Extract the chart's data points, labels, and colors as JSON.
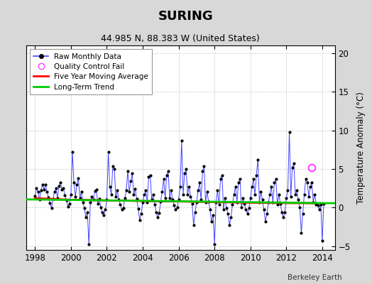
{
  "title": "SURING",
  "subtitle": "44.985 N, 88.383 W (United States)",
  "ylabel": "Temperature Anomaly (°C)",
  "credit": "Berkeley Earth",
  "xlim": [
    1997.5,
    2014.7
  ],
  "ylim": [
    -5.5,
    21.0
  ],
  "yticks": [
    -5,
    0,
    5,
    10,
    15,
    20
  ],
  "xticks": [
    1998,
    2000,
    2002,
    2004,
    2006,
    2008,
    2010,
    2012,
    2014
  ],
  "bg_color": "#d8d8d8",
  "plot_bg_color": "#ffffff",
  "raw_line_color": "#4444ff",
  "raw_marker_color": "#000000",
  "moving_avg_color": "#ff0000",
  "trend_color": "#00cc00",
  "qc_fail_color": "#ff44ff",
  "raw_data": [
    [
      1998.0,
      1.5
    ],
    [
      1998.083,
      2.5
    ],
    [
      1998.167,
      2.0
    ],
    [
      1998.25,
      1.0
    ],
    [
      1998.333,
      2.2
    ],
    [
      1998.417,
      3.0
    ],
    [
      1998.5,
      2.3
    ],
    [
      1998.583,
      3.0
    ],
    [
      1998.667,
      2.0
    ],
    [
      1998.75,
      1.3
    ],
    [
      1998.833,
      0.6
    ],
    [
      1998.917,
      -0.1
    ],
    [
      1999.0,
      1.1
    ],
    [
      1999.083,
      2.0
    ],
    [
      1999.167,
      2.5
    ],
    [
      1999.25,
      1.2
    ],
    [
      1999.333,
      2.8
    ],
    [
      1999.417,
      3.2
    ],
    [
      1999.5,
      2.3
    ],
    [
      1999.583,
      2.5
    ],
    [
      1999.667,
      1.6
    ],
    [
      1999.75,
      0.9
    ],
    [
      1999.833,
      0.1
    ],
    [
      1999.917,
      0.5
    ],
    [
      2000.0,
      1.7
    ],
    [
      2000.083,
      7.2
    ],
    [
      2000.167,
      3.2
    ],
    [
      2000.25,
      1.4
    ],
    [
      2000.333,
      3.0
    ],
    [
      2000.417,
      3.8
    ],
    [
      2000.5,
      1.2
    ],
    [
      2000.583,
      2.0
    ],
    [
      2000.667,
      0.7
    ],
    [
      2000.75,
      -0.1
    ],
    [
      2000.833,
      -1.3
    ],
    [
      2000.917,
      -0.6
    ],
    [
      2001.0,
      -4.8
    ],
    [
      2001.083,
      0.7
    ],
    [
      2001.167,
      1.4
    ],
    [
      2001.25,
      1.0
    ],
    [
      2001.333,
      2.1
    ],
    [
      2001.417,
      2.3
    ],
    [
      2001.5,
      0.5
    ],
    [
      2001.583,
      1.1
    ],
    [
      2001.667,
      0.0
    ],
    [
      2001.75,
      -0.6
    ],
    [
      2001.833,
      -1.0
    ],
    [
      2001.917,
      -0.3
    ],
    [
      2002.0,
      1.0
    ],
    [
      2002.083,
      7.2
    ],
    [
      2002.167,
      2.7
    ],
    [
      2002.25,
      1.7
    ],
    [
      2002.333,
      5.4
    ],
    [
      2002.417,
      5.0
    ],
    [
      2002.5,
      1.4
    ],
    [
      2002.583,
      2.2
    ],
    [
      2002.667,
      1.0
    ],
    [
      2002.75,
      0.4
    ],
    [
      2002.833,
      -0.3
    ],
    [
      2002.917,
      -0.1
    ],
    [
      2003.0,
      1.2
    ],
    [
      2003.083,
      2.2
    ],
    [
      2003.167,
      4.7
    ],
    [
      2003.25,
      2.0
    ],
    [
      2003.333,
      3.4
    ],
    [
      2003.417,
      4.4
    ],
    [
      2003.5,
      1.7
    ],
    [
      2003.583,
      2.4
    ],
    [
      2003.667,
      1.1
    ],
    [
      2003.75,
      -0.2
    ],
    [
      2003.833,
      -1.6
    ],
    [
      2003.917,
      -0.8
    ],
    [
      2004.0,
      0.7
    ],
    [
      2004.083,
      1.7
    ],
    [
      2004.167,
      2.2
    ],
    [
      2004.25,
      0.7
    ],
    [
      2004.333,
      4.0
    ],
    [
      2004.417,
      4.2
    ],
    [
      2004.5,
      1.0
    ],
    [
      2004.583,
      1.7
    ],
    [
      2004.667,
      0.4
    ],
    [
      2004.75,
      -0.6
    ],
    [
      2004.833,
      -1.3
    ],
    [
      2004.917,
      -0.7
    ],
    [
      2005.0,
      0.8
    ],
    [
      2005.083,
      2.0
    ],
    [
      2005.167,
      3.7
    ],
    [
      2005.25,
      1.2
    ],
    [
      2005.333,
      4.2
    ],
    [
      2005.417,
      4.7
    ],
    [
      2005.5,
      1.2
    ],
    [
      2005.583,
      2.2
    ],
    [
      2005.667,
      1.0
    ],
    [
      2005.75,
      0.3
    ],
    [
      2005.833,
      -0.3
    ],
    [
      2005.917,
      0.0
    ],
    [
      2006.0,
      1.0
    ],
    [
      2006.083,
      2.7
    ],
    [
      2006.167,
      8.7
    ],
    [
      2006.25,
      1.7
    ],
    [
      2006.333,
      4.4
    ],
    [
      2006.417,
      5.0
    ],
    [
      2006.5,
      1.7
    ],
    [
      2006.583,
      2.7
    ],
    [
      2006.667,
      1.4
    ],
    [
      2006.75,
      0.5
    ],
    [
      2006.833,
      -2.3
    ],
    [
      2006.917,
      -0.6
    ],
    [
      2007.0,
      0.7
    ],
    [
      2007.083,
      2.2
    ],
    [
      2007.167,
      3.2
    ],
    [
      2007.25,
      1.0
    ],
    [
      2007.333,
      4.7
    ],
    [
      2007.417,
      5.4
    ],
    [
      2007.5,
      0.7
    ],
    [
      2007.583,
      2.0
    ],
    [
      2007.667,
      0.8
    ],
    [
      2007.75,
      -0.3
    ],
    [
      2007.833,
      -1.8
    ],
    [
      2007.917,
      -1.0
    ],
    [
      2008.0,
      -4.8
    ],
    [
      2008.083,
      0.7
    ],
    [
      2008.167,
      2.2
    ],
    [
      2008.25,
      0.4
    ],
    [
      2008.333,
      3.7
    ],
    [
      2008.417,
      4.2
    ],
    [
      2008.5,
      -0.3
    ],
    [
      2008.583,
      1.2
    ],
    [
      2008.667,
      -0.1
    ],
    [
      2008.75,
      -0.8
    ],
    [
      2008.833,
      -2.3
    ],
    [
      2008.917,
      -1.3
    ],
    [
      2009.0,
      0.4
    ],
    [
      2009.083,
      1.7
    ],
    [
      2009.167,
      2.7
    ],
    [
      2009.25,
      0.7
    ],
    [
      2009.333,
      3.2
    ],
    [
      2009.417,
      3.7
    ],
    [
      2009.5,
      0.0
    ],
    [
      2009.583,
      1.2
    ],
    [
      2009.667,
      0.5
    ],
    [
      2009.75,
      -0.3
    ],
    [
      2009.833,
      -0.8
    ],
    [
      2009.917,
      -0.1
    ],
    [
      2010.0,
      1.2
    ],
    [
      2010.083,
      2.7
    ],
    [
      2010.167,
      3.7
    ],
    [
      2010.25,
      1.7
    ],
    [
      2010.333,
      4.2
    ],
    [
      2010.417,
      6.2
    ],
    [
      2010.5,
      0.7
    ],
    [
      2010.583,
      2.0
    ],
    [
      2010.667,
      1.0
    ],
    [
      2010.75,
      -0.3
    ],
    [
      2010.833,
      -1.8
    ],
    [
      2010.917,
      -0.8
    ],
    [
      2011.0,
      0.7
    ],
    [
      2011.083,
      1.7
    ],
    [
      2011.167,
      2.7
    ],
    [
      2011.25,
      0.7
    ],
    [
      2011.333,
      3.2
    ],
    [
      2011.417,
      3.7
    ],
    [
      2011.5,
      0.4
    ],
    [
      2011.583,
      1.7
    ],
    [
      2011.667,
      0.5
    ],
    [
      2011.75,
      -0.6
    ],
    [
      2011.833,
      -1.3
    ],
    [
      2011.917,
      -0.6
    ],
    [
      2012.0,
      1.2
    ],
    [
      2012.083,
      2.2
    ],
    [
      2012.167,
      9.8
    ],
    [
      2012.25,
      1.4
    ],
    [
      2012.333,
      5.2
    ],
    [
      2012.417,
      5.7
    ],
    [
      2012.5,
      1.7
    ],
    [
      2012.583,
      2.2
    ],
    [
      2012.667,
      1.0
    ],
    [
      2012.75,
      0.0
    ],
    [
      2012.833,
      -3.3
    ],
    [
      2012.917,
      -0.8
    ],
    [
      2013.0,
      1.7
    ],
    [
      2013.083,
      3.7
    ],
    [
      2013.167,
      3.2
    ],
    [
      2013.25,
      1.4
    ],
    [
      2013.333,
      2.7
    ],
    [
      2013.417,
      3.2
    ],
    [
      2013.5,
      0.7
    ],
    [
      2013.583,
      1.7
    ],
    [
      2013.667,
      0.4
    ],
    [
      2013.75,
      0.3
    ],
    [
      2013.833,
      -0.3
    ],
    [
      2013.917,
      0.4
    ],
    [
      2014.0,
      -4.3
    ],
    [
      2014.083,
      0.5
    ]
  ],
  "qc_fail_points": [
    [
      2013.417,
      5.2
    ]
  ],
  "moving_avg_x": [
    1998.0,
    1998.5,
    1999.0,
    1999.5,
    2000.0,
    2000.5,
    2001.0,
    2001.5,
    2002.0,
    2002.5,
    2003.0,
    2003.5,
    2004.0,
    2004.5,
    2005.0,
    2005.5,
    2006.0,
    2006.5,
    2007.0,
    2007.5,
    2008.0,
    2008.5,
    2009.0,
    2009.5,
    2010.0,
    2010.5,
    2011.0,
    2011.5,
    2012.0,
    2012.5,
    2013.0,
    2013.5
  ],
  "moving_avg_y": [
    1.2,
    1.15,
    1.1,
    1.05,
    1.0,
    0.98,
    0.96,
    0.94,
    0.92,
    0.9,
    0.88,
    0.86,
    0.84,
    0.82,
    0.8,
    0.79,
    0.78,
    0.76,
    0.74,
    0.72,
    0.7,
    0.68,
    0.66,
    0.64,
    0.62,
    0.61,
    0.6,
    0.59,
    0.58,
    0.57,
    0.56,
    0.55
  ],
  "trend_x": [
    1997.5,
    2014.7
  ],
  "trend_y": [
    1.05,
    0.55
  ]
}
